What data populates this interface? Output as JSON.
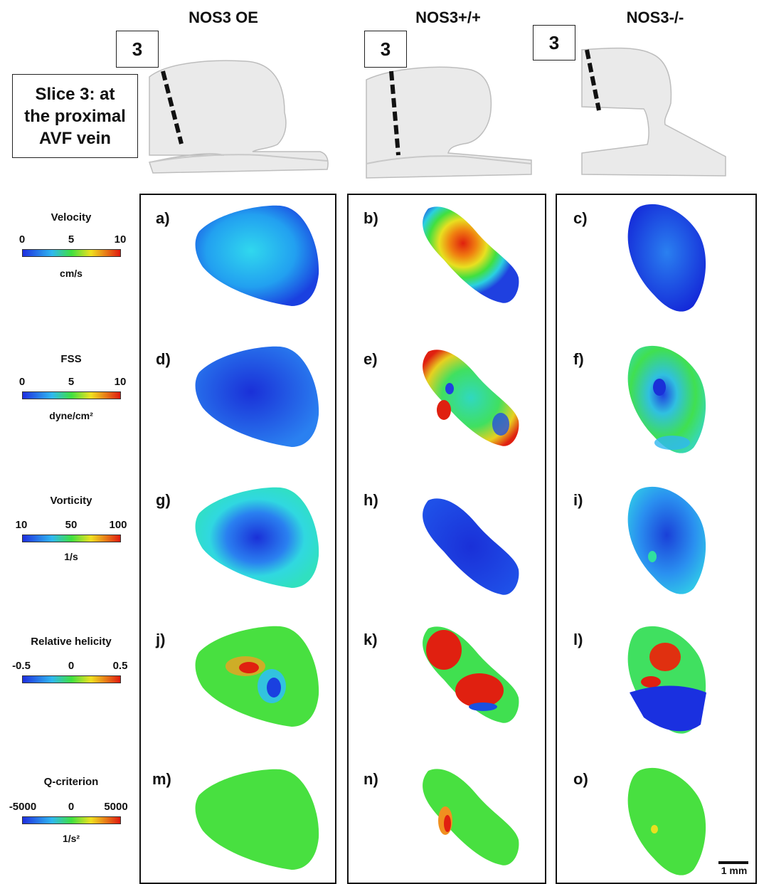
{
  "columns": [
    "NOS3 OE",
    "NOS3+/+",
    "NOS3-/-"
  ],
  "slice_number": "3",
  "slice_description": [
    "Slice 3: at",
    "the proximal",
    "AVF vein"
  ],
  "panel_labels": [
    "a)",
    "b)",
    "c)",
    "d)",
    "e)",
    "f)",
    "g)",
    "h)",
    "i)",
    "j)",
    "k)",
    "l)",
    "m)",
    "n)",
    "o)"
  ],
  "legends": [
    {
      "title": "Velocity",
      "ticks": [
        "0",
        "5",
        "10"
      ],
      "unit": "cm/s"
    },
    {
      "title": "FSS",
      "ticks": [
        "0",
        "5",
        "10"
      ],
      "unit": "dyne/cm²"
    },
    {
      "title": "Vorticity",
      "ticks": [
        "10",
        "50",
        "100"
      ],
      "unit": "1/s"
    },
    {
      "title": "Relative helicity",
      "ticks": [
        "-0.5",
        "0",
        "0.5"
      ],
      "unit": ""
    },
    {
      "title": "Q-criterion",
      "ticks": [
        "-5000",
        "0",
        "5000"
      ],
      "unit": "1/s²"
    }
  ],
  "scale_bar": "1 mm",
  "colors": {
    "jet_blue": "#1f3fe0",
    "jet_cyan": "#2fd8ee",
    "jet_green": "#3fe030",
    "jet_yellow": "#f0e020",
    "jet_red": "#e01a10"
  }
}
